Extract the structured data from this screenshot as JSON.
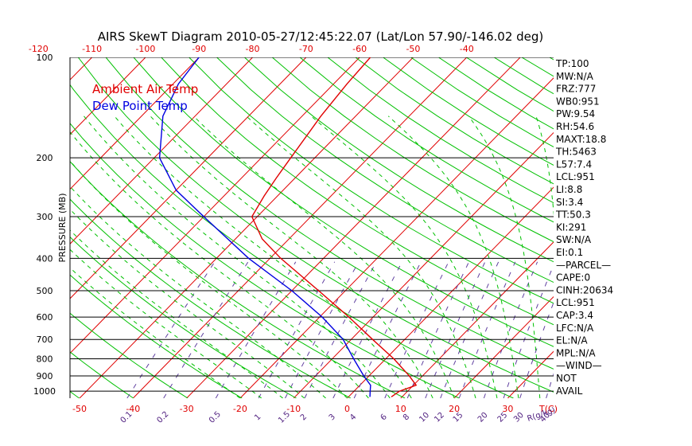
{
  "chart_data": {
    "type": "line",
    "title": "AIRS SkewT Diagram 2010-05-27/12:45:22.07 (Lat/Lon 57.90/-146.02 deg)",
    "ylabel": "PRESSURE (MB)",
    "y_scale": "log",
    "ylim": [
      1050,
      100
    ],
    "xlim_surface_C": [
      -50,
      45
    ],
    "pressure_ticks": [
      "100",
      "200",
      "300",
      "400",
      "500",
      "600",
      "700",
      "800",
      "900",
      "1000"
    ],
    "pressure_tick_values": [
      100,
      200,
      300,
      400,
      500,
      600,
      700,
      800,
      900,
      1000
    ],
    "top_temp_ticks": [
      "-120",
      "-110",
      "-100",
      "-90",
      "-80",
      "-70",
      "-60",
      "-50",
      "-40"
    ],
    "top_temp_values": [
      -120,
      -110,
      -100,
      -90,
      -80,
      -70,
      -60,
      -50,
      -40
    ],
    "bottom_temp_ticks": [
      "-50",
      "-40",
      "-30",
      "-20",
      "-10",
      "0",
      "10",
      "20",
      "30"
    ],
    "bottom_temp_values": [
      -50,
      -40,
      -30,
      -20,
      -10,
      0,
      10,
      20,
      30
    ],
    "bottom_temp_unit": "T(C)",
    "mixing_ratio_labels": [
      "0.1",
      "0.2",
      "0.5",
      "1",
      "1.5",
      "2",
      "3",
      "4",
      "6",
      "8",
      "10",
      "12",
      "15",
      "20",
      "25",
      "30",
      "40"
    ],
    "mixing_ratio_unit": "R(g/kg)",
    "series": [
      {
        "name": "Ambient Air Temp",
        "color": "#e00000",
        "points": [
          {
            "p": 1040,
            "t": 8
          },
          {
            "p": 1000,
            "t": 8.5
          },
          {
            "p": 960,
            "t": 10.5
          },
          {
            "p": 900,
            "t": 7.5
          },
          {
            "p": 800,
            "t": 1.5
          },
          {
            "p": 700,
            "t": -6
          },
          {
            "p": 600,
            "t": -14.5
          },
          {
            "p": 500,
            "t": -25
          },
          {
            "p": 400,
            "t": -38
          },
          {
            "p": 350,
            "t": -45
          },
          {
            "p": 300,
            "t": -51
          },
          {
            "p": 260,
            "t": -52.5
          },
          {
            "p": 230,
            "t": -53.5
          },
          {
            "p": 200,
            "t": -54.5
          },
          {
            "p": 150,
            "t": -56.5
          },
          {
            "p": 120,
            "t": -57.5
          },
          {
            "p": 100,
            "t": -58
          }
        ]
      },
      {
        "name": "Dew Point Temp",
        "color": "#0000e0",
        "points": [
          {
            "p": 1040,
            "t": 4
          },
          {
            "p": 1000,
            "t": 3
          },
          {
            "p": 960,
            "t": 2
          },
          {
            "p": 900,
            "t": -1
          },
          {
            "p": 800,
            "t": -6
          },
          {
            "p": 700,
            "t": -11.5
          },
          {
            "p": 600,
            "t": -19.5
          },
          {
            "p": 500,
            "t": -30
          },
          {
            "p": 400,
            "t": -44
          },
          {
            "p": 300,
            "t": -60
          },
          {
            "p": 250,
            "t": -70
          },
          {
            "p": 200,
            "t": -79
          },
          {
            "p": 150,
            "t": -86
          },
          {
            "p": 120,
            "t": -89
          },
          {
            "p": 100,
            "t": -90
          }
        ]
      }
    ]
  },
  "indices": [
    "TP:100",
    "MW:N/A",
    "FRZ:777",
    "WB0:951",
    "PW:9.54",
    "RH:54.6",
    "MAXT:18.8",
    "TH:5463",
    "L57:7.4",
    "LCL:951",
    "LI:8.8",
    "SI:3.4",
    "TT:50.3",
    "KI:291",
    "SW:N/A",
    "EI:0.1",
    "—PARCEL—",
    "CAPE:0",
    "CINH:20634",
    "LCL:951",
    "CAP:3.4",
    "LFC:N/A",
    "EL:N/A",
    "MPL:N/A",
    "—WIND—",
    "NOT",
    "AVAIL"
  ]
}
